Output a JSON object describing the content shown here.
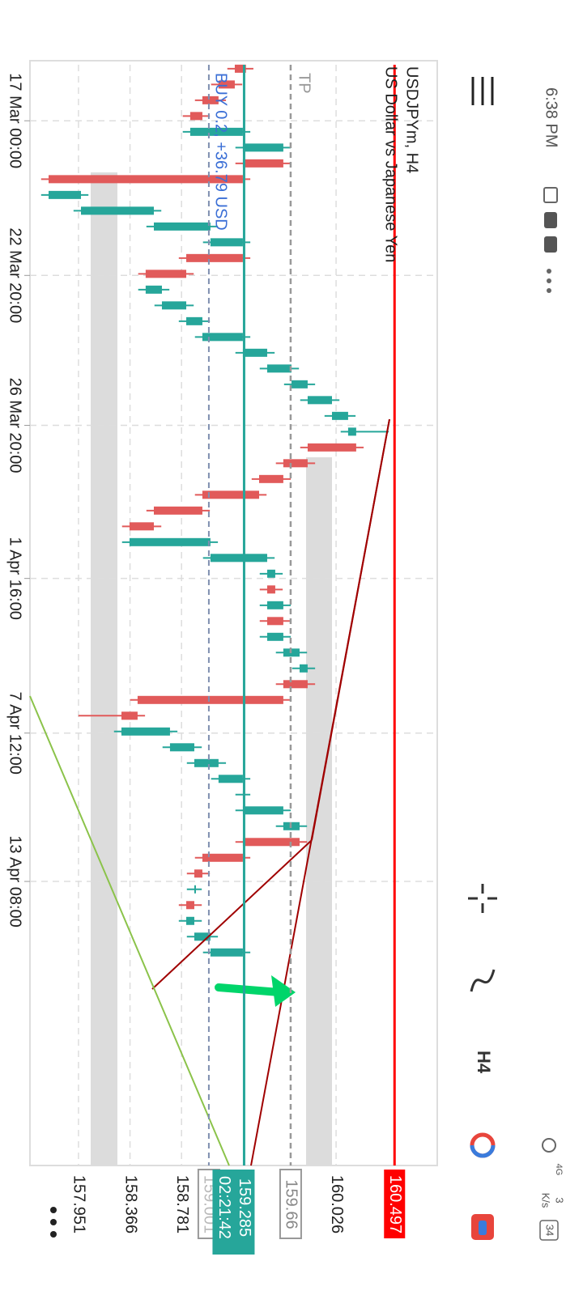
{
  "status_bar": {
    "time": "6:38 PM",
    "network": "4G",
    "speed": "3",
    "speed_unit": "K/s",
    "battery": "34"
  },
  "toolbar": {
    "timeframe": "H4"
  },
  "chart_data": {
    "type": "candlestick",
    "title": "USDJPYm, H4",
    "subtitle": "US Dollar vs Japanese Yen",
    "open": [
      159.3,
      159.21,
      159.079,
      158.949,
      158.851,
      159.275,
      159.601,
      159.275,
      157.71,
      157.971,
      158.558,
      159.014,
      159.275,
      158.819,
      158.492,
      158.623,
      158.819,
      158.949,
      159.275,
      159.471,
      159.667,
      159.797,
      159.993,
      160.123,
      160.188,
      159.797,
      159.601,
      159.406,
      158.949,
      158.558,
      158.362,
      159.014,
      159.471,
      159.536,
      159.471,
      159.601,
      159.471,
      159.601,
      159.732,
      159.797,
      159.601,
      158.427,
      158.297,
      158.688,
      158.884,
      159.079,
      159.275,
      159.275,
      159.601,
      159.732,
      159.275,
      158.949,
      158.884,
      158.884,
      158.819,
      158.884,
      159.014
    ],
    "high": [
      159.36,
      159.27,
      159.139,
      159.009,
      159.335,
      159.661,
      159.661,
      159.335,
      158.031,
      158.618,
      159.074,
      159.335,
      159.335,
      158.879,
      158.683,
      158.879,
      159.009,
      159.335,
      159.531,
      159.727,
      159.857,
      160.053,
      160.183,
      160.45,
      160.248,
      159.857,
      159.661,
      159.466,
      159.009,
      158.618,
      159.074,
      159.531,
      159.596,
      159.596,
      159.661,
      159.661,
      159.661,
      159.792,
      159.857,
      159.857,
      159.661,
      158.487,
      158.748,
      158.944,
      159.139,
      159.335,
      159.335,
      159.661,
      159.792,
      159.792,
      159.335,
      159.009,
      158.944,
      158.944,
      158.944,
      159.074,
      159.335
    ],
    "low": [
      159.15,
      159.019,
      158.889,
      158.791,
      158.791,
      159.215,
      159.215,
      157.65,
      157.65,
      157.911,
      158.498,
      158.954,
      158.759,
      158.432,
      158.432,
      158.563,
      158.759,
      158.889,
      159.215,
      159.411,
      159.607,
      159.737,
      159.933,
      160.063,
      159.737,
      159.541,
      159.346,
      158.889,
      158.498,
      158.302,
      158.302,
      158.954,
      159.411,
      159.411,
      159.411,
      159.411,
      159.411,
      159.541,
      159.672,
      159.541,
      158.367,
      157.95,
      158.237,
      158.628,
      158.824,
      159.019,
      159.215,
      159.215,
      159.541,
      159.215,
      158.889,
      158.824,
      158.824,
      158.759,
      158.759,
      158.824,
      158.954
    ],
    "close": [
      159.21,
      159.079,
      158.949,
      158.851,
      159.275,
      159.601,
      159.275,
      157.71,
      157.971,
      158.558,
      159.014,
      159.275,
      158.819,
      158.492,
      158.623,
      158.819,
      158.949,
      159.275,
      159.471,
      159.667,
      159.797,
      159.993,
      160.123,
      160.188,
      159.797,
      159.601,
      159.406,
      158.949,
      158.558,
      158.362,
      159.014,
      159.471,
      159.536,
      159.471,
      159.601,
      159.471,
      159.601,
      159.732,
      159.797,
      159.601,
      158.427,
      158.297,
      158.688,
      158.884,
      159.079,
      159.275,
      159.275,
      159.601,
      159.732,
      159.275,
      158.949,
      158.884,
      158.884,
      158.819,
      158.884,
      159.014,
      159.275
    ],
    "up_color": "#26a69a",
    "down_color": "#e15a5a",
    "xlim": [
      -0.25,
      69.5
    ],
    "xticks": [
      {
        "value": 3.3,
        "label": "17 Mar 00:00"
      },
      {
        "value": 13.1,
        "label": "22 Mar 20:00"
      },
      {
        "value": 22.6,
        "label": "26 Mar 20:00"
      },
      {
        "value": 32.3,
        "label": "1 Apr 16:00"
      },
      {
        "value": 42.1,
        "label": "7 Apr 12:00"
      },
      {
        "value": 51.5,
        "label": "13 Apr 08:00"
      }
    ],
    "ylim": [
      157.56,
      160.841
    ],
    "yticks": [
      157.951,
      158.366,
      158.781,
      160.026
    ],
    "grid": true,
    "ask_line": {
      "value": 160.497,
      "color": "#ff0000"
    },
    "bid_line": {
      "value": 159.285,
      "countdown": "02:21:42",
      "color": "#26a69a"
    },
    "tp_line": {
      "value": 159.66,
      "label": "TP"
    },
    "position_line": {
      "value": 159.001,
      "label": "BUY 0.2, +36.79 USD"
    }
  }
}
